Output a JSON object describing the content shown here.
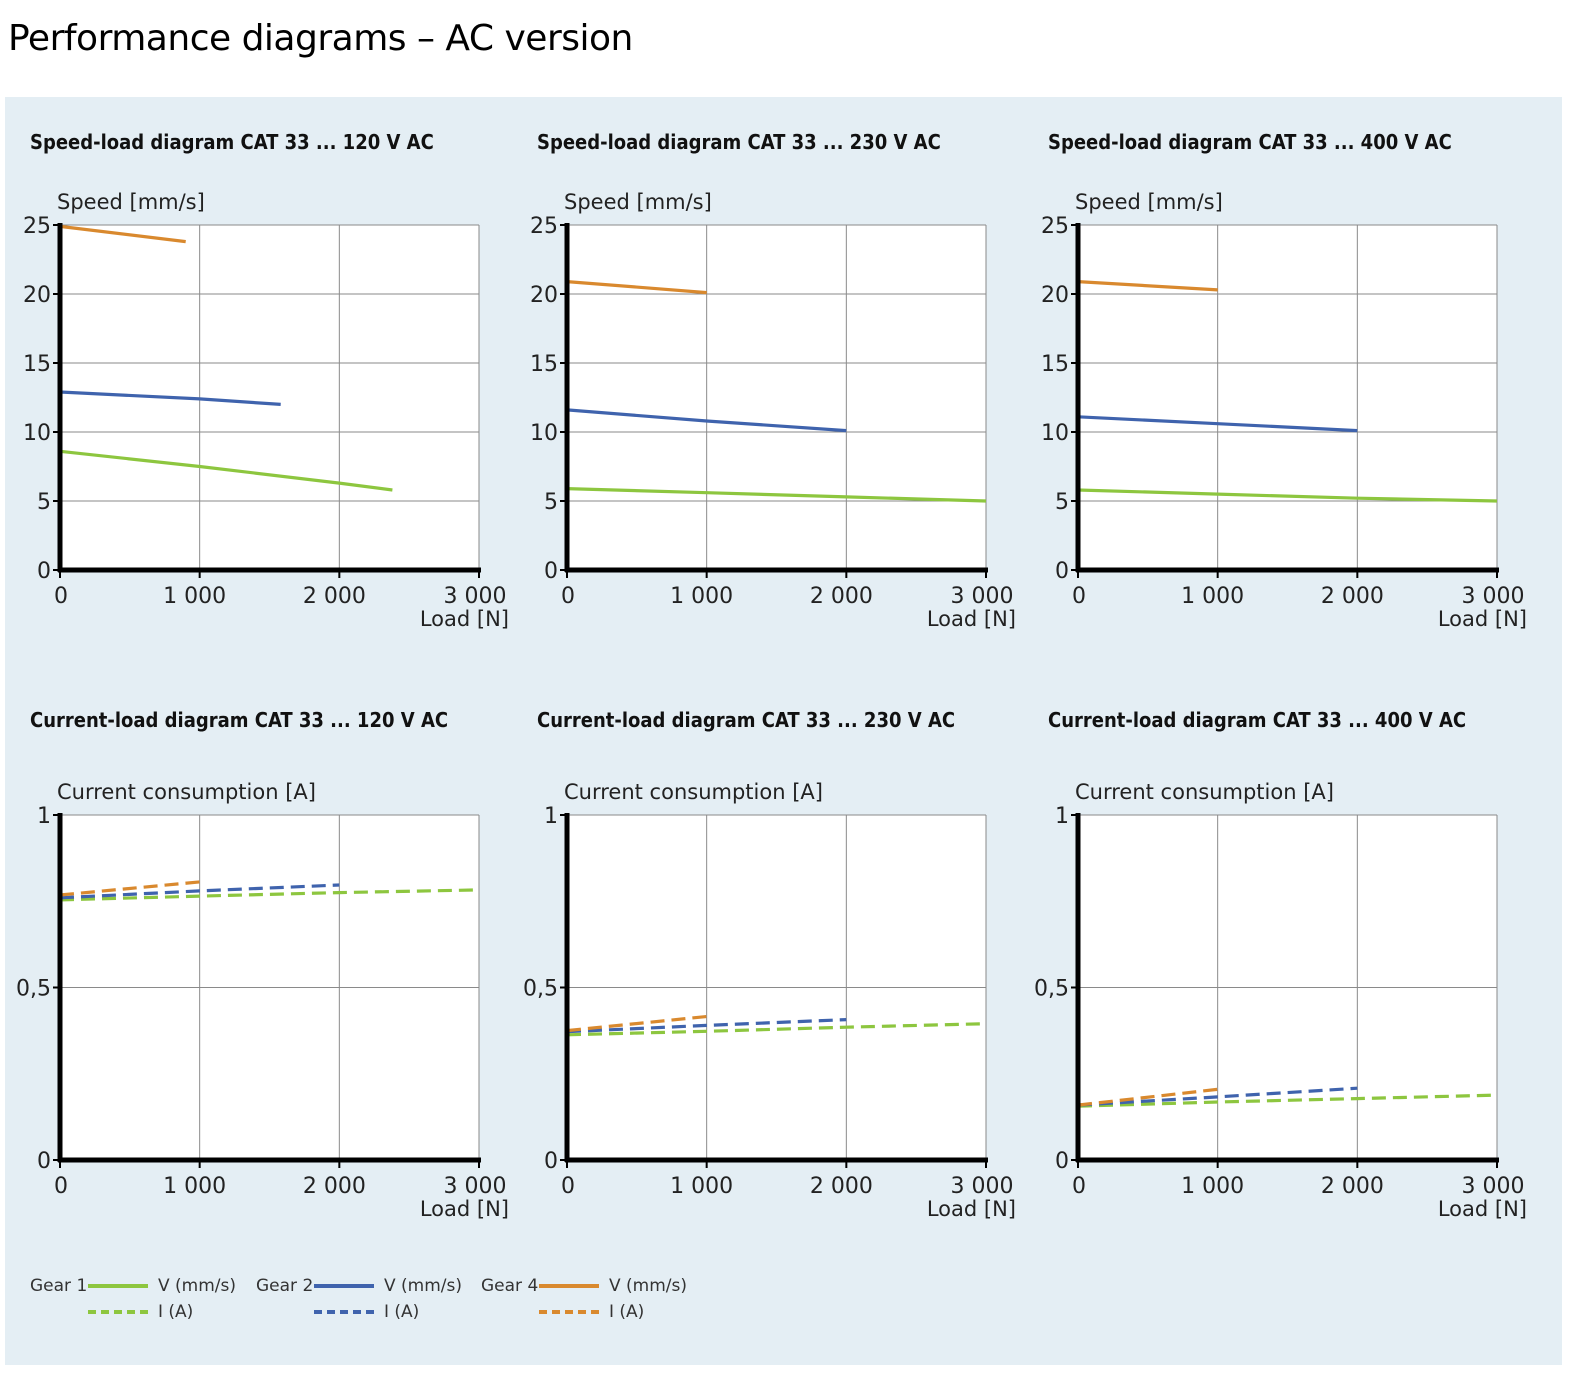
{
  "page": {
    "title": "Performance diagrams – AC version"
  },
  "colors": {
    "panel_bg": "#e4eef4",
    "gear1": "#8dc63f",
    "gear2": "#3f63ad",
    "gear4": "#d9892e",
    "grid": "#8a8a8a",
    "axis": "#000000"
  },
  "legend": {
    "items": [
      {
        "gear": "Gear 1",
        "color_key": "gear1",
        "solid_label": "V (mm/s)",
        "dashed_label": "I (A)"
      },
      {
        "gear": "Gear 2",
        "color_key": "gear2",
        "solid_label": "V (mm/s)",
        "dashed_label": "I (A)"
      },
      {
        "gear": "Gear 4",
        "color_key": "gear4",
        "solid_label": "V (mm/s)",
        "dashed_label": "I (A)"
      }
    ]
  },
  "chart_data": [
    {
      "type": "line",
      "title": "Speed-load diagram CAT 33 ... 120 V AC",
      "ylabel": "Speed [mm/s]",
      "xlabel": "Load [N]",
      "xlim": [
        0,
        3000
      ],
      "ylim": [
        0,
        25
      ],
      "xticks": [
        0,
        1000,
        2000,
        3000
      ],
      "xtick_labels": [
        "0",
        "1 000",
        "2 000",
        "3 000"
      ],
      "yticks": [
        0,
        5,
        10,
        15,
        20,
        25
      ],
      "ytick_labels": [
        "0",
        "5",
        "10",
        "15",
        "20",
        "25"
      ],
      "grid": true,
      "series": [
        {
          "name": "Gear 1 V (mm/s)",
          "color_key": "gear1",
          "dashed": false,
          "x": [
            0,
            1000,
            2000,
            2380
          ],
          "y": [
            8.6,
            7.5,
            6.3,
            5.8
          ]
        },
        {
          "name": "Gear 2 V (mm/s)",
          "color_key": "gear2",
          "dashed": false,
          "x": [
            0,
            1000,
            1580
          ],
          "y": [
            12.9,
            12.4,
            12.0
          ]
        },
        {
          "name": "Gear 4 V (mm/s)",
          "color_key": "gear4",
          "dashed": false,
          "x": [
            0,
            900
          ],
          "y": [
            24.9,
            23.8
          ]
        }
      ]
    },
    {
      "type": "line",
      "title": "Speed-load diagram CAT 33 ... 230 V AC",
      "ylabel": "Speed [mm/s]",
      "xlabel": "Load [N]",
      "xlim": [
        0,
        3000
      ],
      "ylim": [
        0,
        25
      ],
      "xticks": [
        0,
        1000,
        2000,
        3000
      ],
      "xtick_labels": [
        "0",
        "1 000",
        "2 000",
        "3 000"
      ],
      "yticks": [
        0,
        5,
        10,
        15,
        20,
        25
      ],
      "ytick_labels": [
        "0",
        "5",
        "10",
        "15",
        "20",
        "25"
      ],
      "grid": true,
      "series": [
        {
          "name": "Gear 1 V (mm/s)",
          "color_key": "gear1",
          "dashed": false,
          "x": [
            0,
            1000,
            2000,
            3000
          ],
          "y": [
            5.9,
            5.6,
            5.3,
            5.0
          ]
        },
        {
          "name": "Gear 2 V (mm/s)",
          "color_key": "gear2",
          "dashed": false,
          "x": [
            0,
            1000,
            2000
          ],
          "y": [
            11.6,
            10.8,
            10.1
          ]
        },
        {
          "name": "Gear 4 V (mm/s)",
          "color_key": "gear4",
          "dashed": false,
          "x": [
            0,
            1000
          ],
          "y": [
            20.9,
            20.1
          ]
        }
      ]
    },
    {
      "type": "line",
      "title": "Speed-load diagram CAT 33 ... 400 V AC",
      "ylabel": "Speed [mm/s]",
      "xlabel": "Load [N]",
      "xlim": [
        0,
        3000
      ],
      "ylim": [
        0,
        25
      ],
      "xticks": [
        0,
        1000,
        2000,
        3000
      ],
      "xtick_labels": [
        "0",
        "1 000",
        "2 000",
        "3 000"
      ],
      "yticks": [
        0,
        5,
        10,
        15,
        20,
        25
      ],
      "ytick_labels": [
        "0",
        "5",
        "10",
        "15",
        "20",
        "25"
      ],
      "grid": true,
      "series": [
        {
          "name": "Gear 1 V (mm/s)",
          "color_key": "gear1",
          "dashed": false,
          "x": [
            0,
            1000,
            2000,
            3000
          ],
          "y": [
            5.8,
            5.5,
            5.2,
            5.0
          ]
        },
        {
          "name": "Gear 2 V (mm/s)",
          "color_key": "gear2",
          "dashed": false,
          "x": [
            0,
            1000,
            2000
          ],
          "y": [
            11.1,
            10.6,
            10.1
          ]
        },
        {
          "name": "Gear 4 V (mm/s)",
          "color_key": "gear4",
          "dashed": false,
          "x": [
            0,
            1000
          ],
          "y": [
            20.9,
            20.3
          ]
        }
      ]
    },
    {
      "type": "line",
      "title": "Current-load diagram CAT 33 ... 120 V AC",
      "ylabel": "Current consumption [A]",
      "xlabel": "Load [N]",
      "xlim": [
        0,
        3000
      ],
      "ylim": [
        0,
        1
      ],
      "xticks": [
        0,
        1000,
        2000,
        3000
      ],
      "xtick_labels": [
        "0",
        "1 000",
        "2 000",
        "3 000"
      ],
      "yticks": [
        0,
        0.5,
        1
      ],
      "ytick_labels": [
        "0",
        "0,5",
        "1"
      ],
      "grid": true,
      "series": [
        {
          "name": "Gear 1 I (A)",
          "color_key": "gear1",
          "dashed": true,
          "x": [
            0,
            1000,
            2000,
            3000
          ],
          "y": [
            0.754,
            0.765,
            0.775,
            0.783
          ]
        },
        {
          "name": "Gear 2 I (A)",
          "color_key": "gear2",
          "dashed": true,
          "x": [
            0,
            1000,
            2000
          ],
          "y": [
            0.76,
            0.78,
            0.797
          ]
        },
        {
          "name": "Gear 4 I (A)",
          "color_key": "gear4",
          "dashed": true,
          "x": [
            0,
            1000
          ],
          "y": [
            0.768,
            0.806
          ]
        }
      ]
    },
    {
      "type": "line",
      "title": "Current-load diagram CAT 33 ... 230 V AC",
      "ylabel": "Current consumption [A]",
      "xlabel": "Load [N]",
      "xlim": [
        0,
        3000
      ],
      "ylim": [
        0,
        1
      ],
      "xticks": [
        0,
        1000,
        2000,
        3000
      ],
      "xtick_labels": [
        "0",
        "1 000",
        "2 000",
        "3 000"
      ],
      "yticks": [
        0,
        0.5,
        1
      ],
      "ytick_labels": [
        "0",
        "0,5",
        "1"
      ],
      "grid": true,
      "series": [
        {
          "name": "Gear 1 I (A)",
          "color_key": "gear1",
          "dashed": true,
          "x": [
            0,
            1000,
            2000,
            3000
          ],
          "y": [
            0.363,
            0.373,
            0.385,
            0.395
          ]
        },
        {
          "name": "Gear 2 I (A)",
          "color_key": "gear2",
          "dashed": true,
          "x": [
            0,
            1000,
            2000
          ],
          "y": [
            0.372,
            0.39,
            0.407
          ]
        },
        {
          "name": "Gear 4 I (A)",
          "color_key": "gear4",
          "dashed": true,
          "x": [
            0,
            1000
          ],
          "y": [
            0.375,
            0.416
          ]
        }
      ]
    },
    {
      "type": "line",
      "title": "Current-load diagram CAT 33 ... 400 V AC",
      "ylabel": "Current consumption [A]",
      "xlabel": "Load [N]",
      "xlim": [
        0,
        3000
      ],
      "ylim": [
        0,
        1
      ],
      "xticks": [
        0,
        1000,
        2000,
        3000
      ],
      "xtick_labels": [
        "0",
        "1 000",
        "2 000",
        "3 000"
      ],
      "yticks": [
        0,
        0.5,
        1
      ],
      "ytick_labels": [
        "0",
        "0,5",
        "1"
      ],
      "grid": true,
      "series": [
        {
          "name": "Gear 1 I (A)",
          "color_key": "gear1",
          "dashed": true,
          "x": [
            0,
            1000,
            2000,
            3000
          ],
          "y": [
            0.156,
            0.168,
            0.178,
            0.188
          ]
        },
        {
          "name": "Gear 2 I (A)",
          "color_key": "gear2",
          "dashed": true,
          "x": [
            0,
            1000,
            2000
          ],
          "y": [
            0.159,
            0.183,
            0.208
          ]
        },
        {
          "name": "Gear 4 I (A)",
          "color_key": "gear4",
          "dashed": true,
          "x": [
            0,
            1000
          ],
          "y": [
            0.159,
            0.205
          ]
        }
      ]
    }
  ]
}
